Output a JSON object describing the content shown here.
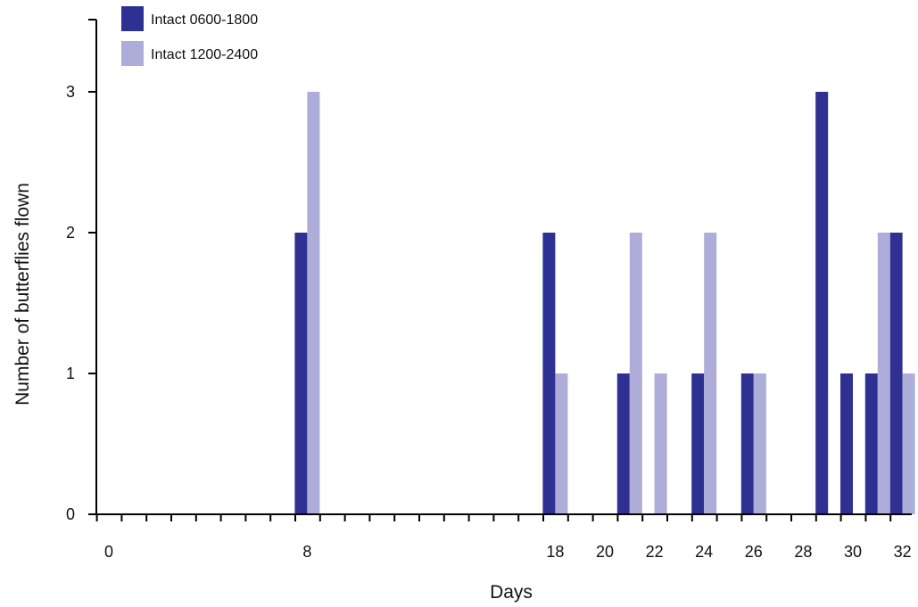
{
  "chart_data": {
    "type": "bar",
    "xlabel": "Days",
    "ylabel": "Number of butterflies flown",
    "xlim": [
      0,
      32
    ],
    "ylim": [
      0,
      3
    ],
    "x_tick_labels": [
      0,
      8,
      18,
      20,
      22,
      24,
      26,
      28,
      30,
      32
    ],
    "y_ticks": [
      0,
      1,
      2,
      3
    ],
    "grid": false,
    "legend_position": "top-left",
    "series": [
      {
        "name": "Intact 0600-1800",
        "color": "#2e3192",
        "points": [
          {
            "x": 8,
            "y": 2
          },
          {
            "x": 18,
            "y": 2
          },
          {
            "x": 21,
            "y": 1
          },
          {
            "x": 24,
            "y": 1
          },
          {
            "x": 26,
            "y": 1
          },
          {
            "x": 29,
            "y": 3
          },
          {
            "x": 30,
            "y": 1
          },
          {
            "x": 31,
            "y": 1
          },
          {
            "x": 32,
            "y": 2
          }
        ]
      },
      {
        "name": "Intact 1200-2400",
        "color": "#aeacd8",
        "points": [
          {
            "x": 8,
            "y": 3
          },
          {
            "x": 18,
            "y": 1
          },
          {
            "x": 21,
            "y": 2
          },
          {
            "x": 22,
            "y": 1
          },
          {
            "x": 24,
            "y": 2
          },
          {
            "x": 26,
            "y": 1
          },
          {
            "x": 31,
            "y": 2
          },
          {
            "x": 32,
            "y": 1
          }
        ]
      }
    ]
  }
}
